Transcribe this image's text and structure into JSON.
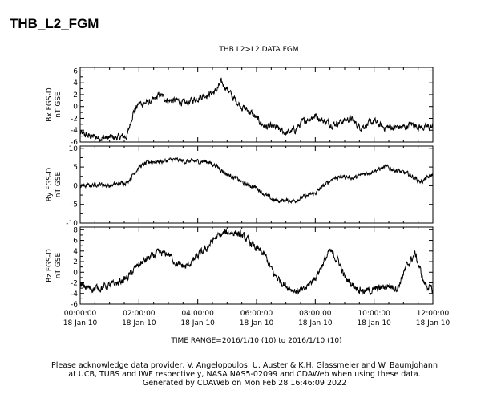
{
  "header": {
    "title": "THB_L2_FGM"
  },
  "footer": {
    "time_range": "TIME RANGE=2016/1/10 (10) to 2016/1/10 (10)",
    "ack": [
      "Please acknowledge data provider, V. Angelopoulos, U. Auster & K.H. Glassmeier and W. Baumjohann",
      "at UCB, TUBS and IWF respectively, NASA NAS5-02099 and CDAWeb when using these data.",
      "Generated by CDAWeb on Mon Feb 28 16:46:09 2022"
    ]
  },
  "chart_data": {
    "type": "line",
    "title": "THB  L2>L2 DATA  FGM",
    "x_ticks": [
      {
        "hour": 0,
        "time": "00:00:00",
        "date": "18 Jan 10"
      },
      {
        "hour": 2,
        "time": "02:00:00",
        "date": "18 Jan 10"
      },
      {
        "hour": 4,
        "time": "04:00:00",
        "date": "18 Jan 10"
      },
      {
        "hour": 6,
        "time": "06:00:00",
        "date": "18 Jan 10"
      },
      {
        "hour": 8,
        "time": "08:00:00",
        "date": "18 Jan 10"
      },
      {
        "hour": 10,
        "time": "10:00:00",
        "date": "18 Jan 10"
      },
      {
        "hour": 12,
        "time": "12:00:00",
        "date": "18 Jan 10"
      }
    ],
    "xlim_hours": [
      0,
      12
    ],
    "panels": [
      {
        "ylabel": "Bx FGS-D",
        "unit": "nT GSE",
        "ylim": [
          -6,
          6.6
        ],
        "yticks": [
          -6,
          -4,
          -2,
          0,
          2,
          4,
          6
        ],
        "x": [
          0,
          0.3,
          0.6,
          1.0,
          1.3,
          1.6,
          1.8,
          2.0,
          2.3,
          2.5,
          2.7,
          3.0,
          3.3,
          3.6,
          4.0,
          4.3,
          4.6,
          4.8,
          5.0,
          5.2,
          5.5,
          5.8,
          6.0,
          6.3,
          6.6,
          7.0,
          7.3,
          7.6,
          8.0,
          8.3,
          8.6,
          8.9,
          9.2,
          9.5,
          9.8,
          10.0,
          10.3,
          10.6,
          11.0,
          11.3,
          11.6,
          12.0
        ],
        "y": [
          -4.5,
          -5.0,
          -5.2,
          -5.3,
          -5.2,
          -5.0,
          -1.0,
          0.5,
          0.6,
          1.0,
          2.0,
          1.0,
          1.0,
          0.5,
          1.5,
          2.0,
          2.5,
          4.0,
          3.0,
          1.5,
          0.0,
          -1.0,
          -2.0,
          -3.5,
          -3.5,
          -4.5,
          -4.0,
          -2.5,
          -1.5,
          -2.5,
          -3.0,
          -2.5,
          -2.0,
          -3.5,
          -3.0,
          -2.5,
          -3.5,
          -3.5,
          -3.5,
          -3.0,
          -3.5,
          -3.5
        ]
      },
      {
        "ylabel": "By FGS-D",
        "unit": "nT GSE",
        "ylim": [
          -10,
          10.6
        ],
        "yticks": [
          -10,
          -5,
          0,
          5,
          10
        ],
        "x": [
          0,
          0.3,
          0.6,
          1.0,
          1.3,
          1.6,
          1.8,
          2.0,
          2.4,
          2.8,
          3.2,
          3.6,
          4.0,
          4.3,
          4.6,
          5.0,
          5.3,
          5.6,
          6.0,
          6.3,
          6.6,
          7.0,
          7.3,
          7.6,
          8.0,
          8.3,
          8.6,
          9.0,
          9.3,
          9.6,
          10.0,
          10.4,
          10.8,
          11.2,
          11.6,
          12.0
        ],
        "y": [
          0,
          0,
          0.5,
          0,
          0.5,
          1.0,
          3.0,
          5.0,
          6.5,
          6.5,
          7.0,
          6.5,
          6.5,
          6.5,
          5.5,
          3.0,
          2.0,
          0.5,
          -0.5,
          -2.5,
          -4.0,
          -4.0,
          -4.0,
          -3.0,
          -2.0,
          0.0,
          2.0,
          2.5,
          2.0,
          3.0,
          4.0,
          5.0,
          4.0,
          3.0,
          1.0,
          3.0
        ]
      },
      {
        "ylabel": "Bz FGS-D",
        "unit": "nT GSE",
        "ylim": [
          -6,
          8.5
        ],
        "yticks": [
          -6,
          -4,
          -2,
          0,
          2,
          4,
          6,
          8
        ],
        "x": [
          0,
          0.3,
          0.6,
          1.0,
          1.3,
          1.6,
          2.0,
          2.3,
          2.6,
          3.0,
          3.3,
          3.6,
          4.0,
          4.3,
          4.6,
          5.0,
          5.3,
          5.6,
          6.0,
          6.3,
          6.6,
          7.0,
          7.3,
          7.6,
          8.0,
          8.2,
          8.5,
          8.8,
          9.0,
          9.3,
          9.6,
          9.9,
          10.2,
          10.5,
          10.8,
          11.1,
          11.4,
          11.7,
          12.0
        ],
        "y": [
          -2.5,
          -3.0,
          -3.0,
          -2.5,
          -2.0,
          -1.0,
          1.5,
          2.5,
          3.5,
          3.5,
          1.5,
          1.0,
          3.0,
          4.5,
          6.5,
          7.5,
          7.5,
          6.5,
          4.5,
          3.0,
          -0.5,
          -2.5,
          -3.5,
          -3.5,
          -1.0,
          1.0,
          4.0,
          2.0,
          -1.0,
          -2.5,
          -3.5,
          -3.5,
          -3.0,
          -2.5,
          -3.0,
          1.0,
          3.5,
          -2.0,
          -3.5
        ]
      }
    ]
  }
}
